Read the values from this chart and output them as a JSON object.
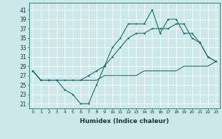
{
  "xlabel": "Humidex (Indice chaleur)",
  "bg_color": "#cce8e8",
  "line_color": "#1a6b6b",
  "grid_color": "#ffffff",
  "x_ticks": [
    0,
    1,
    2,
    3,
    4,
    5,
    6,
    7,
    8,
    9,
    10,
    11,
    12,
    13,
    14,
    15,
    16,
    17,
    18,
    19,
    20,
    21,
    22,
    23
  ],
  "y_ticks": [
    21,
    23,
    25,
    27,
    29,
    31,
    33,
    35,
    37,
    39,
    41
  ],
  "xlim": [
    -0.5,
    23.5
  ],
  "ylim": [
    20.0,
    42.5
  ],
  "line1": [
    28,
    26,
    26,
    26,
    24,
    23,
    21,
    21,
    25,
    29,
    33,
    35,
    38,
    38,
    38,
    41,
    36,
    39,
    39,
    36,
    36,
    34,
    31,
    30
  ],
  "line2": [
    28,
    26,
    26,
    26,
    26,
    26,
    26,
    27,
    28,
    29,
    31,
    33,
    35,
    36,
    36,
    37,
    37,
    37,
    38,
    38,
    35,
    34,
    31,
    30
  ],
  "line3": [
    28,
    26,
    26,
    26,
    26,
    26,
    26,
    26,
    26,
    27,
    27,
    27,
    27,
    27,
    28,
    28,
    28,
    28,
    28,
    29,
    29,
    29,
    29,
    30
  ]
}
